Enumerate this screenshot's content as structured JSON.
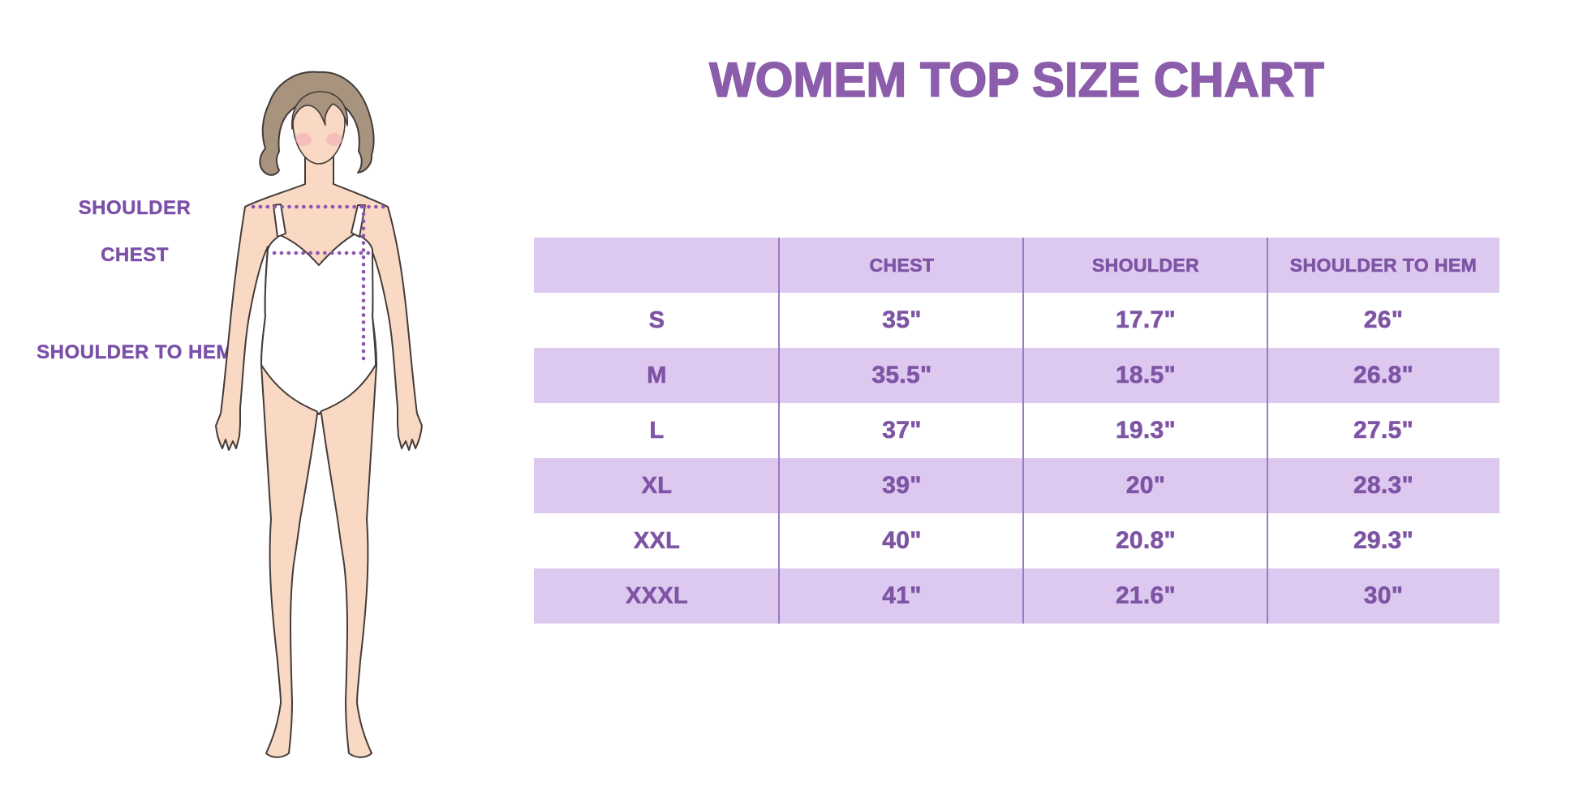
{
  "title": "WOMEM TOP SIZE CHART",
  "figure": {
    "shoulder_label": "SHOULDER",
    "chest_label": "CHEST",
    "shoulder_to_hem_label": "SHOULDER TO HEM"
  },
  "colors": {
    "title": "#8c5dab",
    "label": "#7b50a8",
    "table_text": "#7e54a4",
    "band": "#ddc9f0",
    "divider": "#9b7ac2",
    "dots": "#8e55af",
    "skin": "#f9d8c4",
    "hair": "#a8937f",
    "outline": "#433c39",
    "blush": "#f3a9b4"
  },
  "chart_data": {
    "type": "table",
    "title": "WOMEM TOP SIZE CHART",
    "columns": [
      "",
      "CHEST",
      "SHOULDER",
      "SHOULDER TO HEM"
    ],
    "rows": [
      [
        "S",
        "35\"",
        "17.7\"",
        "26\""
      ],
      [
        "M",
        "35.5\"",
        "18.5\"",
        "26.8\""
      ],
      [
        "L",
        "37\"",
        "19.3\"",
        "27.5\""
      ],
      [
        "XL",
        "39\"",
        "20\"",
        "28.3\""
      ],
      [
        "XXL",
        "40\"",
        "20.8\"",
        "29.3\""
      ],
      [
        "XXXL",
        "41\"",
        "21.6\"",
        "30\""
      ]
    ],
    "layout_hints": {
      "banded_rows": [
        "header",
        "M",
        "XL",
        "XXXL"
      ],
      "grid": "vertical dividers only",
      "measurement_labels": [
        "SHOULDER",
        "CHEST",
        "SHOULDER TO HEM"
      ]
    }
  }
}
